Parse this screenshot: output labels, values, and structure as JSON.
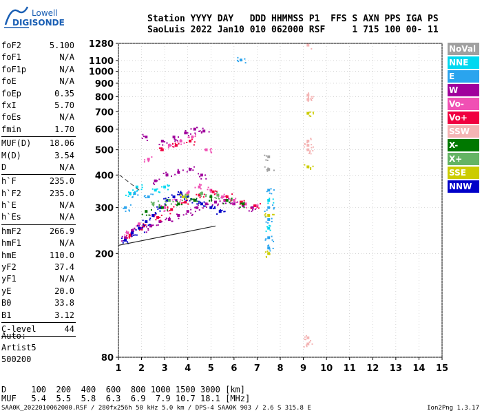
{
  "logo": {
    "line1": "Lowell",
    "line2": "DIGISONDE"
  },
  "header": {
    "line1": "Station YYYY DAY   DDD HHMMSS P1  FFS S AXN PPS IGA PS",
    "line2": "SaoLuis 2022 Jan10 010 062000 RSF     1 715 100 00- 11"
  },
  "params": [
    [
      {
        "name": "foF2",
        "value": "5.100"
      },
      {
        "name": "foF1",
        "value": "N/A"
      },
      {
        "name": "foF1p",
        "value": "N/A"
      },
      {
        "name": "foE",
        "value": "N/A"
      },
      {
        "name": "foEp",
        "value": "0.35"
      },
      {
        "name": "fxI",
        "value": "5.70"
      },
      {
        "name": "foEs",
        "value": "N/A"
      },
      {
        "name": "fmin",
        "value": "1.70"
      }
    ],
    [
      {
        "name": "MUF(D)",
        "value": "18.06"
      },
      {
        "name": "M(D)",
        "value": "3.54"
      },
      {
        "name": "D",
        "value": "N/A"
      }
    ],
    [
      {
        "name": "h`F",
        "value": "235.0"
      },
      {
        "name": "h`F2",
        "value": "235.0"
      },
      {
        "name": "h`E",
        "value": "N/A"
      },
      {
        "name": "h`Es",
        "value": "N/A"
      }
    ],
    [
      {
        "name": "hmF2",
        "value": "266.9"
      },
      {
        "name": "hmF1",
        "value": "N/A"
      },
      {
        "name": "hmE",
        "value": "110.0"
      },
      {
        "name": "yF2",
        "value": "37.4"
      },
      {
        "name": "yF1",
        "value": "N/A"
      },
      {
        "name": "yE",
        "value": "20.0"
      },
      {
        "name": "B0",
        "value": "33.8"
      },
      {
        "name": "B1",
        "value": "3.12"
      }
    ],
    [
      {
        "name": "C-level",
        "value": "44"
      }
    ]
  ],
  "auto": {
    "line1": "Auto:",
    "line2": "Artist5",
    "line3": "500200"
  },
  "legend": [
    {
      "label": "NoVal",
      "color": "#a0a0a0"
    },
    {
      "label": "NNE",
      "color": "#00d8f0"
    },
    {
      "label": "E",
      "color": "#2aa4ee"
    },
    {
      "label": "W",
      "color": "#a0009c"
    },
    {
      "label": "Vo-",
      "color": "#f050b4"
    },
    {
      "label": "Vo+",
      "color": "#f00040"
    },
    {
      "label": "SSW",
      "color": "#f4b4b4"
    },
    {
      "label": "X-",
      "color": "#007800"
    },
    {
      "label": "X+",
      "color": "#64b464"
    },
    {
      "label": "SSE",
      "color": "#cccc00"
    },
    {
      "label": "NNW",
      "color": "#0000c8"
    }
  ],
  "bottom": {
    "d_line": "D     100  200  400  600  800 1000 1500 3000 [km]",
    "muf_line": "MUF   5.4  5.5  5.8  6.3  6.9  7.9 10.7 18.1 [MHz]",
    "footer": "SAA0K_2022010062000.RSF / 280fx256h 50 kHz 5.0 km / DPS-4 SAA0K 903 / 2.6 S 315.8 E",
    "version": "Ion2Png 1.3.17"
  },
  "chart_data": {
    "type": "scatter",
    "title": "",
    "xlabel": "",
    "ylabel": "",
    "xlim": [
      1,
      15
    ],
    "ylim": [
      80,
      1280
    ],
    "y_scale": "log",
    "x_ticks": [
      1,
      2,
      3,
      4,
      5,
      6,
      7,
      8,
      9,
      10,
      11,
      12,
      13,
      14,
      15
    ],
    "y_ticks": [
      80,
      200,
      300,
      400,
      500,
      600,
      700,
      800,
      900,
      1000,
      1100,
      1280
    ],
    "grid": "dotted",
    "legend_position": "right",
    "series": [
      {
        "name": "W",
        "points": [
          [
            1.3,
            230
          ],
          [
            1.6,
            245
          ],
          [
            2.0,
            250
          ],
          [
            2.4,
            255
          ],
          [
            2.8,
            265
          ],
          [
            3.2,
            270
          ],
          [
            3.6,
            280
          ],
          [
            4.0,
            290
          ],
          [
            4.4,
            300
          ],
          [
            4.8,
            310
          ],
          [
            5.2,
            315
          ],
          [
            5.6,
            320
          ],
          [
            6.0,
            310
          ],
          [
            6.4,
            305
          ],
          [
            6.8,
            300
          ],
          [
            2.2,
            560
          ],
          [
            2.9,
            540
          ],
          [
            3.4,
            560
          ],
          [
            3.9,
            580
          ],
          [
            4.3,
            600
          ],
          [
            4.7,
            590
          ],
          [
            2.6,
            380
          ],
          [
            3.1,
            400
          ],
          [
            3.6,
            410
          ],
          [
            4.1,
            420
          ],
          [
            4.6,
            400
          ]
        ]
      },
      {
        "name": "Vo-",
        "points": [
          [
            1.4,
            240
          ],
          [
            1.9,
            260
          ],
          [
            2.5,
            280
          ],
          [
            3.0,
            300
          ],
          [
            3.5,
            320
          ],
          [
            4.0,
            340
          ],
          [
            4.5,
            360
          ],
          [
            5.0,
            350
          ],
          [
            5.5,
            330
          ],
          [
            6.0,
            320
          ],
          [
            6.5,
            310
          ],
          [
            7.0,
            305
          ],
          [
            3.2,
            520
          ],
          [
            3.7,
            540
          ],
          [
            4.2,
            560
          ],
          [
            2.3,
            460
          ],
          [
            4.8,
            500
          ]
        ]
      },
      {
        "name": "Vo+",
        "points": [
          [
            1.5,
            235
          ],
          [
            2.1,
            255
          ],
          [
            2.7,
            275
          ],
          [
            3.3,
            295
          ],
          [
            3.9,
            315
          ],
          [
            4.5,
            335
          ],
          [
            5.1,
            345
          ],
          [
            5.7,
            330
          ],
          [
            6.3,
            315
          ],
          [
            6.9,
            305
          ],
          [
            2.9,
            500
          ],
          [
            3.5,
            520
          ],
          [
            4.1,
            540
          ]
        ]
      },
      {
        "name": "NNW",
        "points": [
          [
            1.3,
            225
          ],
          [
            1.6,
            240
          ],
          [
            1.9,
            250
          ],
          [
            2.2,
            265
          ],
          [
            2.5,
            280
          ],
          [
            2.8,
            300
          ],
          [
            3.1,
            320
          ],
          [
            3.4,
            330
          ],
          [
            3.7,
            340
          ],
          [
            4.0,
            330
          ],
          [
            4.3,
            320
          ],
          [
            4.6,
            310
          ],
          [
            5.0,
            300
          ],
          [
            5.4,
            290
          ]
        ]
      },
      {
        "name": "X-",
        "points": [
          [
            2.2,
            290
          ],
          [
            2.9,
            300
          ],
          [
            3.6,
            310
          ],
          [
            4.3,
            320
          ],
          [
            5.0,
            330
          ],
          [
            5.7,
            320
          ],
          [
            6.4,
            310
          ]
        ]
      },
      {
        "name": "X+",
        "points": [
          [
            2.5,
            310
          ],
          [
            3.2,
            320
          ],
          [
            3.9,
            330
          ],
          [
            4.6,
            340
          ],
          [
            5.3,
            335
          ]
        ]
      },
      {
        "name": "E",
        "points": [
          [
            1.3,
            300
          ],
          [
            1.7,
            340
          ],
          [
            2.3,
            330
          ],
          [
            7.5,
            350
          ],
          [
            7.5,
            300
          ],
          [
            7.5,
            270
          ],
          [
            7.5,
            230
          ],
          [
            7.5,
            210
          ],
          [
            6.3,
            1105
          ]
        ]
      },
      {
        "name": "NNE",
        "points": [
          [
            1.5,
            340
          ],
          [
            1.8,
            360
          ],
          [
            2.6,
            350
          ],
          [
            3.0,
            360
          ],
          [
            7.5,
            320
          ],
          [
            7.5,
            250
          ]
        ]
      },
      {
        "name": "SSE",
        "points": [
          [
            7.5,
            280
          ],
          [
            7.5,
            200
          ],
          [
            9.2,
            690
          ],
          [
            9.2,
            430
          ],
          [
            3.8,
            330
          ]
        ]
      },
      {
        "name": "SSW",
        "points": [
          [
            9.2,
            1260
          ],
          [
            9.2,
            810
          ],
          [
            9.2,
            780
          ],
          [
            9.2,
            540
          ],
          [
            9.2,
            520
          ],
          [
            9.2,
            500
          ],
          [
            9.2,
            95
          ],
          [
            9.2,
            90
          ]
        ]
      },
      {
        "name": "NoVal",
        "points": [
          [
            7.5,
            470
          ],
          [
            7.5,
            420
          ]
        ]
      }
    ]
  }
}
